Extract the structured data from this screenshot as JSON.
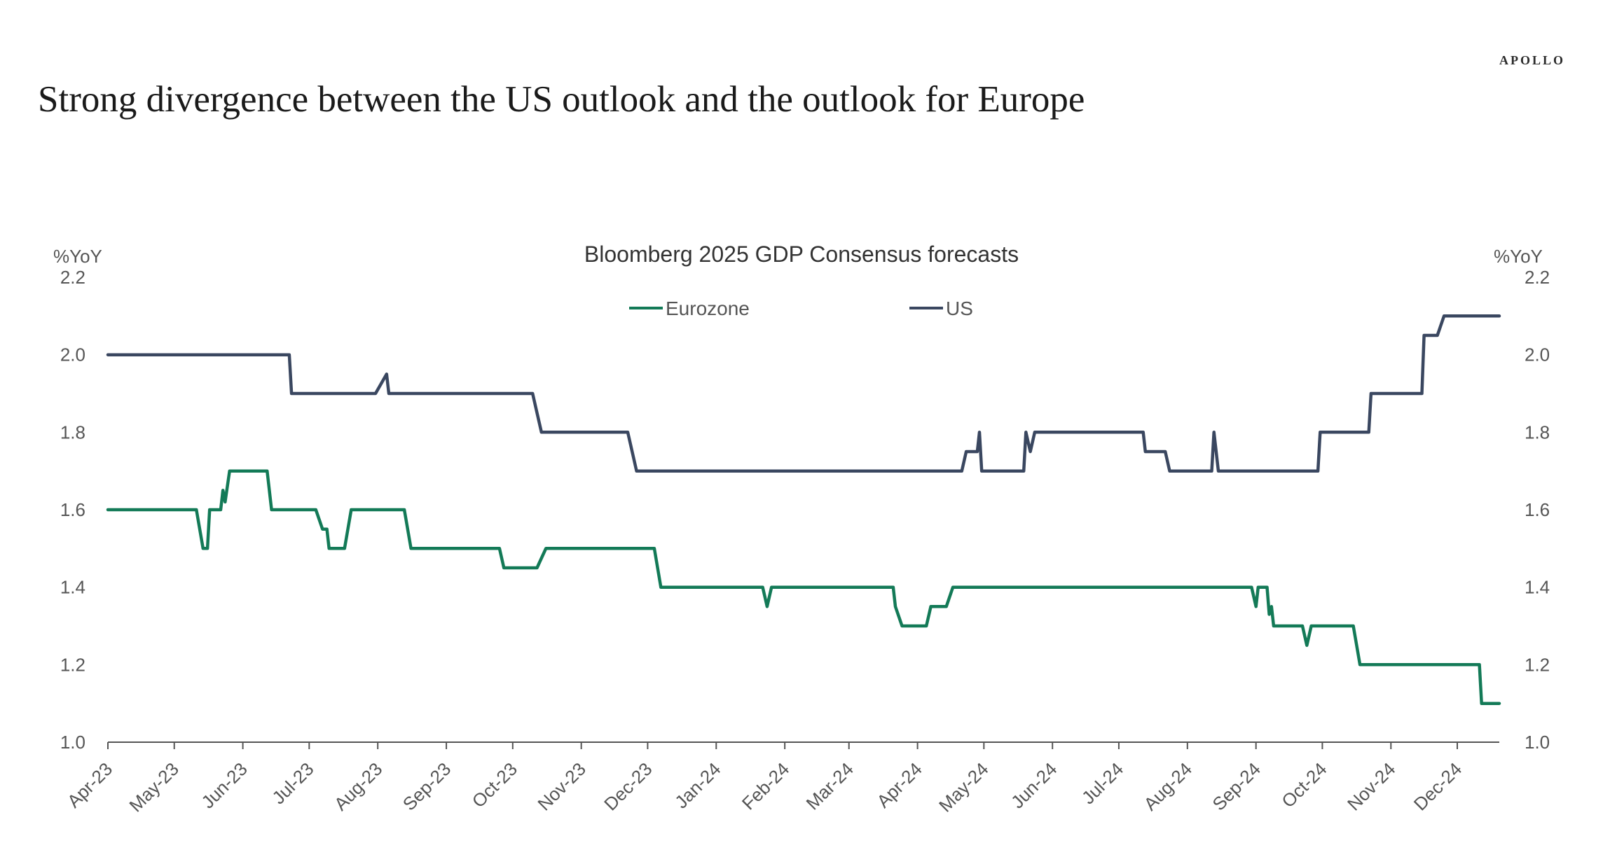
{
  "header": {
    "brand": "APOLLO",
    "headline": "Strong divergence between the US outlook and the outlook for Europe"
  },
  "colors": {
    "eurozone": "#137a57",
    "us": "#3a4760",
    "axis": "#555555"
  },
  "chart_data": {
    "type": "line",
    "title": "Bloomberg 2025 GDP Consensus forecasts",
    "ylabel_left": "%YoY",
    "ylabel_right": "%YoY",
    "ylim": [
      1.0,
      2.2
    ],
    "yticks": [
      "1.0",
      "1.2",
      "1.4",
      "1.6",
      "1.8",
      "2.0",
      "2.2"
    ],
    "x_ticks": [
      "Apr-23",
      "May-23",
      "Jun-23",
      "Jul-23",
      "Aug-23",
      "Sep-23",
      "Oct-23",
      "Nov-23",
      "Dec-23",
      "Jan-24",
      "Feb-24",
      "Mar-24",
      "Apr-24",
      "May-24",
      "Jun-24",
      "Jul-24",
      "Aug-24",
      "Sep-24",
      "Oct-24",
      "Nov-24",
      "Dec-24"
    ],
    "x_range": [
      "2023-04-01",
      "2024-12-20"
    ],
    "legend_position": "top-center",
    "grid": false,
    "series": [
      {
        "name": "Eurozone",
        "color": "#137a57",
        "points": [
          [
            "2023-04-01",
            1.6
          ],
          [
            "2023-05-11",
            1.6
          ],
          [
            "2023-05-14",
            1.5
          ],
          [
            "2023-05-16",
            1.5
          ],
          [
            "2023-05-17",
            1.6
          ],
          [
            "2023-05-22",
            1.6
          ],
          [
            "2023-05-23",
            1.65
          ],
          [
            "2023-05-24",
            1.62
          ],
          [
            "2023-05-26",
            1.7
          ],
          [
            "2023-06-12",
            1.7
          ],
          [
            "2023-06-14",
            1.6
          ],
          [
            "2023-07-04",
            1.6
          ],
          [
            "2023-07-07",
            1.55
          ],
          [
            "2023-07-09",
            1.55
          ],
          [
            "2023-07-10",
            1.5
          ],
          [
            "2023-07-17",
            1.5
          ],
          [
            "2023-07-20",
            1.6
          ],
          [
            "2023-08-13",
            1.6
          ],
          [
            "2023-08-16",
            1.5
          ],
          [
            "2023-09-25",
            1.5
          ],
          [
            "2023-09-27",
            1.45
          ],
          [
            "2023-10-12",
            1.45
          ],
          [
            "2023-10-16",
            1.5
          ],
          [
            "2023-12-04",
            1.5
          ],
          [
            "2023-12-07",
            1.4
          ],
          [
            "2024-01-22",
            1.4
          ],
          [
            "2024-01-24",
            1.35
          ],
          [
            "2024-01-26",
            1.4
          ],
          [
            "2024-03-21",
            1.4
          ],
          [
            "2024-03-22",
            1.35
          ],
          [
            "2024-03-25",
            1.3
          ],
          [
            "2024-04-05",
            1.3
          ],
          [
            "2024-04-07",
            1.35
          ],
          [
            "2024-04-14",
            1.35
          ],
          [
            "2024-04-17",
            1.4
          ],
          [
            "2024-08-30",
            1.4
          ],
          [
            "2024-09-01",
            1.35
          ],
          [
            "2024-09-02",
            1.4
          ],
          [
            "2024-09-06",
            1.4
          ],
          [
            "2024-09-07",
            1.33
          ],
          [
            "2024-09-08",
            1.35
          ],
          [
            "2024-09-09",
            1.3
          ],
          [
            "2024-09-22",
            1.3
          ],
          [
            "2024-09-24",
            1.25
          ],
          [
            "2024-09-26",
            1.3
          ],
          [
            "2024-10-15",
            1.3
          ],
          [
            "2024-10-18",
            1.2
          ],
          [
            "2024-12-11",
            1.2
          ],
          [
            "2024-12-12",
            1.1
          ],
          [
            "2024-12-20",
            1.1
          ]
        ]
      },
      {
        "name": "US",
        "color": "#3a4760",
        "points": [
          [
            "2023-04-01",
            2.0
          ],
          [
            "2023-06-22",
            2.0
          ],
          [
            "2023-06-23",
            1.9
          ],
          [
            "2023-07-31",
            1.9
          ],
          [
            "2023-08-03",
            1.93
          ],
          [
            "2023-08-05",
            1.95
          ],
          [
            "2023-08-06",
            1.9
          ],
          [
            "2023-10-10",
            1.9
          ],
          [
            "2023-10-12",
            1.85
          ],
          [
            "2023-10-14",
            1.8
          ],
          [
            "2023-11-22",
            1.8
          ],
          [
            "2023-11-26",
            1.7
          ],
          [
            "2024-04-21",
            1.7
          ],
          [
            "2024-04-23",
            1.75
          ],
          [
            "2024-04-28",
            1.75
          ],
          [
            "2024-04-29",
            1.8
          ],
          [
            "2024-04-30",
            1.7
          ],
          [
            "2024-05-19",
            1.7
          ],
          [
            "2024-05-20",
            1.8
          ],
          [
            "2024-05-22",
            1.75
          ],
          [
            "2024-05-24",
            1.8
          ],
          [
            "2024-07-12",
            1.8
          ],
          [
            "2024-07-13",
            1.75
          ],
          [
            "2024-07-22",
            1.75
          ],
          [
            "2024-07-24",
            1.7
          ],
          [
            "2024-08-12",
            1.7
          ],
          [
            "2024-08-13",
            1.8
          ],
          [
            "2024-08-15",
            1.7
          ],
          [
            "2024-09-29",
            1.7
          ],
          [
            "2024-09-30",
            1.8
          ],
          [
            "2024-10-22",
            1.8
          ],
          [
            "2024-10-23",
            1.9
          ],
          [
            "2024-11-15",
            1.9
          ],
          [
            "2024-11-16",
            2.05
          ],
          [
            "2024-11-22",
            2.05
          ],
          [
            "2024-11-25",
            2.1
          ],
          [
            "2024-12-20",
            2.1
          ]
        ]
      }
    ]
  }
}
